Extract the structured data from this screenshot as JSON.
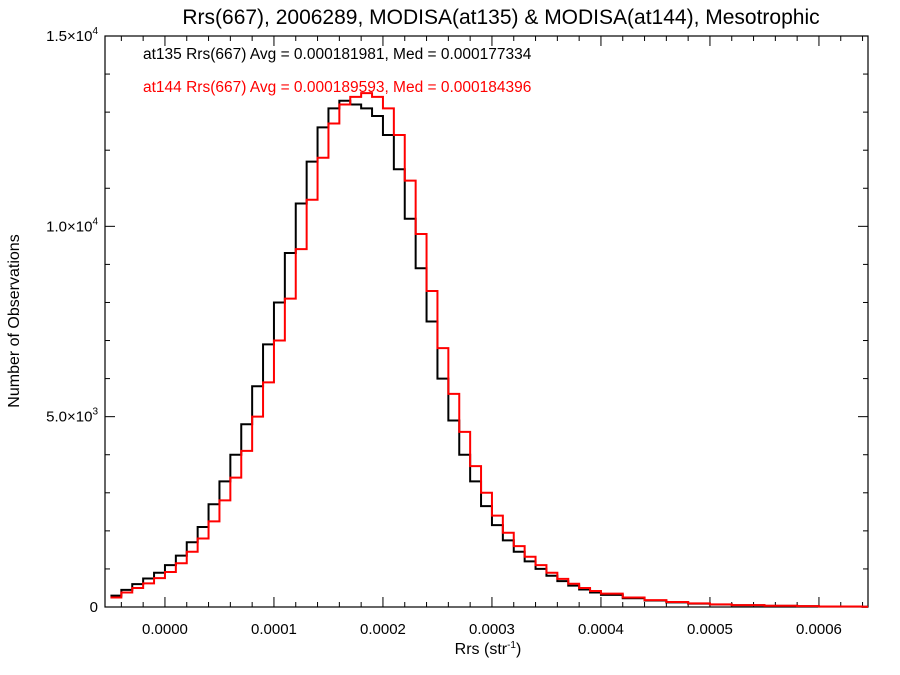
{
  "chart_data": {
    "type": "line",
    "title": "Rrs(667), 2006289, MODISA(at135) & MODISA(at144), Mesotrophic",
    "xlabel": "Rrs (str",
    "xlabel_sup": "-1",
    "xlabel_close": ")",
    "ylabel": "Number of Observations",
    "xlim": [
      -5.5e-05,
      0.000645
    ],
    "ylim": [
      0,
      15000
    ],
    "x_ticks": [
      {
        "value": 0.0,
        "label": "0.0000"
      },
      {
        "value": 0.0001,
        "label": "0.0001"
      },
      {
        "value": 0.0002,
        "label": "0.0002"
      },
      {
        "value": 0.0003,
        "label": "0.0003"
      },
      {
        "value": 0.0004,
        "label": "0.0004"
      },
      {
        "value": 0.0005,
        "label": "0.0005"
      },
      {
        "value": 0.0006,
        "label": "0.0006"
      }
    ],
    "y_ticks": [
      {
        "value": 0,
        "label": "0",
        "exp": ""
      },
      {
        "value": 5000,
        "label": "5.0×10",
        "exp": "3"
      },
      {
        "value": 10000,
        "label": "1.0×10",
        "exp": "4"
      },
      {
        "value": 15000,
        "label": "1.5×10",
        "exp": "4"
      }
    ],
    "grid": false,
    "legend_position": "top-left",
    "series": [
      {
        "legend": "at135 Rrs(667) Avg = 0.000181981, Med = 0.000177334",
        "color": "#000000",
        "x": [
          -5e-05,
          -4e-05,
          -3e-05,
          -2e-05,
          -1e-05,
          0.0,
          1e-05,
          2e-05,
          3e-05,
          4e-05,
          5e-05,
          6e-05,
          7e-05,
          8e-05,
          9e-05,
          0.0001,
          0.00011,
          0.00012,
          0.00013,
          0.00014,
          0.00015,
          0.00016,
          0.00017,
          0.00018,
          0.00019,
          0.0002,
          0.00021,
          0.00022,
          0.00023,
          0.00024,
          0.00025,
          0.00026,
          0.00027,
          0.00028,
          0.00029,
          0.0003,
          0.00031,
          0.00032,
          0.00033,
          0.00034,
          0.00035,
          0.00036,
          0.00037,
          0.00038,
          0.00039,
          0.0004,
          0.00042,
          0.00044,
          0.00046,
          0.00048,
          0.0005,
          0.00052,
          0.00055,
          0.00058,
          0.0006,
          0.00064
        ],
        "y": [
          300,
          450,
          600,
          750,
          900,
          1100,
          1350,
          1700,
          2100,
          2700,
          3300,
          4000,
          4800,
          5800,
          6900,
          8000,
          9300,
          10600,
          11700,
          12600,
          13100,
          13300,
          13200,
          13100,
          12900,
          12400,
          11500,
          10200,
          8900,
          7500,
          6000,
          4900,
          4000,
          3300,
          2650,
          2150,
          1750,
          1450,
          1200,
          1000,
          820,
          680,
          560,
          460,
          380,
          320,
          230,
          170,
          120,
          90,
          65,
          45,
          30,
          20,
          12,
          5
        ]
      },
      {
        "legend": "at144 Rrs(667) Avg = 0.000189593, Med = 0.000184396",
        "color": "#ff0000",
        "x": [
          -5e-05,
          -4e-05,
          -3e-05,
          -2e-05,
          -1e-05,
          0.0,
          1e-05,
          2e-05,
          3e-05,
          4e-05,
          5e-05,
          6e-05,
          7e-05,
          8e-05,
          9e-05,
          0.0001,
          0.00011,
          0.00012,
          0.00013,
          0.00014,
          0.00015,
          0.00016,
          0.00017,
          0.00018,
          0.00019,
          0.0002,
          0.00021,
          0.00022,
          0.00023,
          0.00024,
          0.00025,
          0.00026,
          0.00027,
          0.00028,
          0.00029,
          0.0003,
          0.00031,
          0.00032,
          0.00033,
          0.00034,
          0.00035,
          0.00036,
          0.00037,
          0.00038,
          0.00039,
          0.0004,
          0.00042,
          0.00044,
          0.00046,
          0.00048,
          0.0005,
          0.00052,
          0.00055,
          0.00058,
          0.0006,
          0.00064
        ],
        "y": [
          250,
          380,
          500,
          620,
          760,
          920,
          1150,
          1450,
          1800,
          2250,
          2800,
          3400,
          4100,
          5000,
          5900,
          7000,
          8100,
          9400,
          10700,
          11800,
          12700,
          13200,
          13400,
          13500,
          13400,
          13100,
          12400,
          11200,
          9800,
          8300,
          6800,
          5600,
          4600,
          3700,
          3000,
          2400,
          1950,
          1600,
          1320,
          1100,
          900,
          740,
          610,
          500,
          420,
          350,
          250,
          180,
          130,
          95,
          70,
          50,
          32,
          22,
          14,
          6
        ]
      }
    ]
  }
}
